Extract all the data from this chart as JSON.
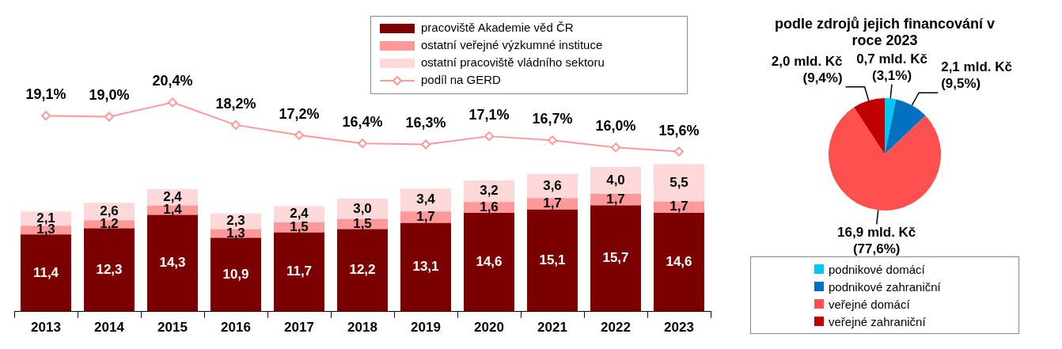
{
  "chart_data": [
    {
      "type": "bar",
      "categories": [
        "2013",
        "2014",
        "2015",
        "2016",
        "2017",
        "2018",
        "2019",
        "2020",
        "2021",
        "2022",
        "2023"
      ],
      "stacked": true,
      "legend": "top right",
      "grid": false,
      "tick_labels": "x",
      "ylim": [
        0,
        44
      ],
      "y2lim": [
        0,
        29
      ],
      "series": [
        {
          "name": "pracoviště Akademie věd ČR",
          "color": "#7b0000",
          "values": [
            11.4,
            12.3,
            14.3,
            10.9,
            11.7,
            12.2,
            13.1,
            14.6,
            15.1,
            15.7,
            14.6
          ],
          "value_labels": [
            "11,4",
            "12,3",
            "14,3",
            "10,9",
            "11,7",
            "12,2",
            "13,1",
            "14,6",
            "15,1",
            "15,7",
            "14,6"
          ]
        },
        {
          "name": "ostatní veřejné výzkumné instituce",
          "color": "#ff9999",
          "values": [
            1.3,
            1.2,
            1.4,
            1.3,
            1.5,
            1.5,
            1.7,
            1.6,
            1.7,
            1.7,
            1.7
          ],
          "value_labels": [
            "1,3",
            "1,2",
            "1,4",
            "1,3",
            "1,5",
            "1,5",
            "1,7",
            "1,6",
            "1,7",
            "1,7",
            "1,7"
          ]
        },
        {
          "name": "ostatní pracoviště vládního sektoru",
          "color": "#ffd9d9",
          "values": [
            2.1,
            2.6,
            2.4,
            2.3,
            2.4,
            3.0,
            3.4,
            3.2,
            3.6,
            4.0,
            5.5
          ],
          "value_labels": [
            "2,1",
            "2,6",
            "2,4",
            "2,3",
            "2,4",
            "3,0",
            "3,4",
            "3,2",
            "3,6",
            "4,0",
            "5,5"
          ]
        },
        {
          "name": "podíl na GERD",
          "type": "line",
          "axis": "y2",
          "color": "#ff9999",
          "marker": "diamond",
          "values": [
            19.1,
            19.0,
            20.4,
            18.2,
            17.2,
            16.4,
            16.3,
            17.1,
            16.7,
            16.0,
            15.6
          ],
          "value_labels": [
            "19,1%",
            "19,0%",
            "20,4%",
            "18,2%",
            "17,2%",
            "16,4%",
            "16,3%",
            "17,1%",
            "16,7%",
            "16,0%",
            "15,6%"
          ]
        }
      ]
    },
    {
      "type": "pie",
      "title": "podle zdrojů jejich financování v roce 2023",
      "categories": [
        "podnikové domácí",
        "podnikové zahraniční",
        "veřejné domácí",
        "veřejné zahraniční"
      ],
      "values": [
        0.7,
        2.1,
        16.9,
        2.0
      ],
      "colors": [
        "#00c8f0",
        "#0070c0",
        "#ff5050",
        "#c00000"
      ],
      "value_labels": [
        "0,7 mld. Kč\n(3,1%)",
        "2,1 mld. Kč\n(9,5%)",
        "16,9 mld. Kč\n(77,6%)",
        "2,0 mld. Kč\n(9,4%)"
      ],
      "legend": "bottom"
    }
  ]
}
